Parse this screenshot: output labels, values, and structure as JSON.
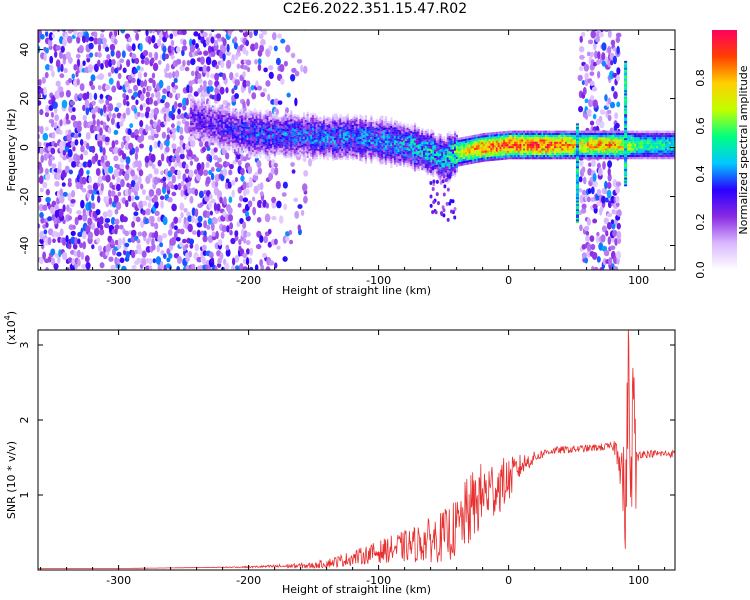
{
  "title": "C2E6.2022.351.15.47.R02",
  "chart_data": [
    {
      "type": "heatmap",
      "xlabel": "Height of straight line (km)",
      "ylabel": "Frequency (Hz)",
      "xlim": [
        -362,
        128
      ],
      "ylim": [
        -50,
        48
      ],
      "x_ticks": [
        -300,
        -200,
        -100,
        0,
        100
      ],
      "y_ticks": [
        -40,
        -20,
        0,
        20,
        40
      ],
      "colorbar": {
        "label": "Normalized spectral amplitude",
        "range": [
          0,
          1
        ],
        "ticks": [
          0.0,
          0.2,
          0.4,
          0.6,
          0.8
        ],
        "colors": [
          "#ffffff",
          "#d9b8ff",
          "#8a2be2",
          "#2a00ff",
          "#00c8ff",
          "#00ff80",
          "#c0ff00",
          "#ffd000",
          "#ff4000",
          "#ff0060"
        ]
      },
      "ridge": {
        "x": [
          -240,
          -220,
          -200,
          -180,
          -160,
          -140,
          -120,
          -100,
          -80,
          -60,
          -50,
          -40,
          -20,
          0,
          20,
          40,
          55,
          80,
          100,
          128
        ],
        "y": [
          12,
          8,
          6,
          5,
          5,
          4,
          4,
          3,
          1,
          -2,
          -5,
          -2,
          0,
          1,
          1,
          1,
          1,
          1,
          1,
          1
        ],
        "peak_amplitude": [
          0.3,
          0.35,
          0.4,
          0.42,
          0.45,
          0.45,
          0.45,
          0.45,
          0.5,
          0.55,
          0.5,
          0.7,
          0.9,
          0.95,
          0.95,
          0.9,
          0.8,
          0.85,
          0.6,
          0.55
        ]
      },
      "noise_regions": [
        {
          "x_range": [
            -362,
            -150
          ],
          "amplitude": 0.3
        },
        {
          "x_range": [
            55,
            85
          ],
          "amplitude": 0.3
        }
      ],
      "spikes": [
        {
          "x": 53,
          "y_range": [
            -30,
            10
          ]
        },
        {
          "x": 90,
          "y_range": [
            -15,
            36
          ]
        }
      ]
    },
    {
      "type": "line",
      "xlabel": "Height of straight line (km)",
      "ylabel": "SNR (10 * v/v)",
      "y_multiplier": "(x10",
      "y_multiplier_exp": "4",
      "xlim": [
        -362,
        128
      ],
      "ylim": [
        0,
        3.2
      ],
      "x_ticks": [
        -300,
        -200,
        -100,
        0,
        100
      ],
      "y_ticks": [
        1,
        2,
        3
      ],
      "color": "#e83030",
      "series": [
        {
          "x": [
            -362,
            -300,
            -250,
            -200,
            -150,
            -130,
            -110,
            -90,
            -70,
            -50,
            -40,
            -30,
            -20,
            -10,
            0,
            10,
            20,
            30,
            40,
            60,
            80,
            85,
            88,
            90,
            92,
            94,
            96,
            98,
            100,
            110,
            128
          ],
          "y": [
            0.02,
            0.02,
            0.03,
            0.04,
            0.06,
            0.12,
            0.2,
            0.28,
            0.35,
            0.45,
            0.55,
            0.8,
            1.0,
            1.1,
            1.2,
            1.4,
            1.5,
            1.58,
            1.6,
            1.62,
            1.65,
            1.6,
            1.2,
            0.6,
            2.8,
            1.0,
            2.5,
            1.2,
            1.55,
            1.55,
            1.55
          ],
          "noise": [
            0,
            0,
            0,
            0.01,
            0.04,
            0.08,
            0.12,
            0.18,
            0.25,
            0.35,
            0.4,
            0.5,
            0.45,
            0.4,
            0.3,
            0.15,
            0.08,
            0.05,
            0.05,
            0.05,
            0.05,
            0.3,
            0.6,
            0.7,
            0.8,
            0.8,
            0.7,
            0.5,
            0.06,
            0.05,
            0.05
          ]
        }
      ]
    }
  ]
}
